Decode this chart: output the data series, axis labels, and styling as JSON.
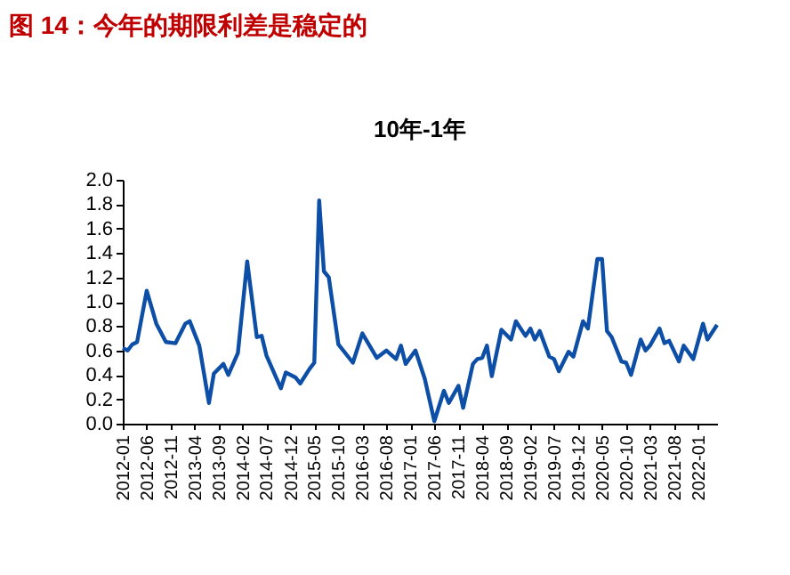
{
  "chart_data": {
    "type": "line",
    "title": "图 14：今年的期限利差是稳定的",
    "subtitle": "10年-1年",
    "x": [
      "2012-01",
      "2012-02",
      "2012-03",
      "2012-04",
      "2012-06",
      "2012-08",
      "2012-10",
      "2012-12",
      "2013-02",
      "2013-03",
      "2013-05",
      "2013-07",
      "2013-08",
      "2013-10",
      "2013-11",
      "2014-01",
      "2014-03",
      "2014-05",
      "2014-06",
      "2014-07",
      "2014-10",
      "2014-11",
      "2015-01",
      "2015-02",
      "2015-04",
      "2015-05",
      "2015-06",
      "2015-07",
      "2015-08",
      "2015-10",
      "2016-01",
      "2016-03",
      "2016-06",
      "2016-08",
      "2016-10",
      "2016-11",
      "2016-12",
      "2017-02",
      "2017-04",
      "2017-06",
      "2017-08",
      "2017-09",
      "2017-11",
      "2017-12",
      "2018-02",
      "2018-03",
      "2018-04",
      "2018-05",
      "2018-06",
      "2018-08",
      "2018-10",
      "2018-11",
      "2019-01",
      "2019-02",
      "2019-03",
      "2019-04",
      "2019-06",
      "2019-07",
      "2019-08",
      "2019-10",
      "2019-11",
      "2020-01",
      "2020-02",
      "2020-04",
      "2020-05",
      "2020-06",
      "2020-07",
      "2020-09",
      "2020-10",
      "2020-11",
      "2021-01",
      "2021-02",
      "2021-03",
      "2021-05",
      "2021-06",
      "2021-07",
      "2021-09",
      "2021-10",
      "2021-12",
      "2022-02",
      "2022-03",
      "2022-05"
    ],
    "series": [
      {
        "color": "#0d4ea6",
        "values": [
          0.62,
          0.6,
          0.65,
          0.67,
          1.09,
          0.82,
          0.67,
          0.66,
          0.82,
          0.84,
          0.64,
          0.17,
          0.41,
          0.49,
          0.4,
          0.58,
          1.33,
          0.71,
          0.72,
          0.56,
          0.29,
          0.42,
          0.38,
          0.33,
          0.45,
          0.5,
          1.83,
          1.25,
          1.2,
          0.65,
          0.5,
          0.74,
          0.54,
          0.6,
          0.53,
          0.64,
          0.49,
          0.6,
          0.37,
          0.02,
          0.27,
          0.17,
          0.31,
          0.13,
          0.49,
          0.53,
          0.54,
          0.64,
          0.39,
          0.77,
          0.69,
          0.84,
          0.72,
          0.78,
          0.69,
          0.76,
          0.55,
          0.53,
          0.43,
          0.59,
          0.55,
          0.84,
          0.78,
          1.35,
          1.35,
          0.76,
          0.71,
          0.51,
          0.5,
          0.4,
          0.69,
          0.6,
          0.64,
          0.78,
          0.66,
          0.68,
          0.51,
          0.64,
          0.53,
          0.82,
          0.69,
          0.81
        ]
      }
    ],
    "xlim": [
      "2012-01",
      "2022-05"
    ],
    "xticks": [
      "2012-01",
      "2012-06",
      "2012-11",
      "2013-04",
      "2013-09",
      "2014-02",
      "2014-07",
      "2014-12",
      "2015-05",
      "2015-10",
      "2016-03",
      "2016-08",
      "2017-01",
      "2017-06",
      "2017-11",
      "2018-04",
      "2018-09",
      "2019-02",
      "2019-07",
      "2019-12",
      "2020-05",
      "2020-10",
      "2021-03",
      "2021-08",
      "2022-01"
    ],
    "ylim": [
      0,
      2.0
    ],
    "yticks": [
      {
        "value": 0,
        "label": "0.0"
      },
      {
        "value": 0.2,
        "label": "0.2"
      },
      {
        "value": 0.4,
        "label": "0.4"
      },
      {
        "value": 0.6,
        "label": "0.6"
      },
      {
        "value": 0.8,
        "label": "0.8"
      },
      {
        "value": 1.0,
        "label": "1.0"
      },
      {
        "value": 1.2,
        "label": "1.2"
      },
      {
        "value": 1.4,
        "label": "1.4"
      },
      {
        "value": 1.6,
        "label": "1.6"
      },
      {
        "value": 1.8,
        "label": "1.8"
      },
      {
        "value": 2.0,
        "label": "2.0"
      }
    ],
    "grid": false
  }
}
